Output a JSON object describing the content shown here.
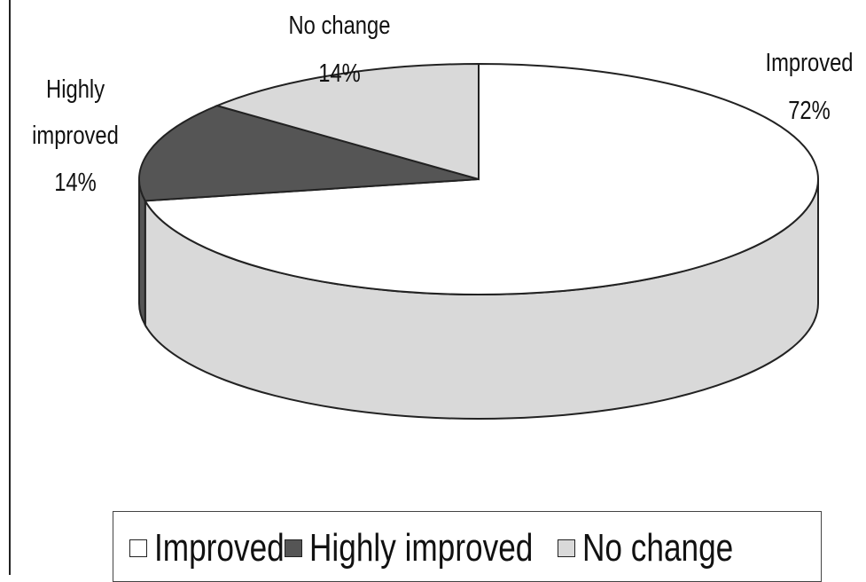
{
  "chart_data": {
    "type": "pie",
    "style": "3d",
    "title": "",
    "categories": [
      "Improved",
      "Highly improved",
      "No change"
    ],
    "values": [
      72,
      14,
      14
    ],
    "unit": "%",
    "data_labels": [
      {
        "category": "Improved",
        "value_text": "72%"
      },
      {
        "category": "Highly improved",
        "value_text": "14%"
      },
      {
        "category": "No change",
        "value_text": "14%"
      }
    ],
    "colors": {
      "Improved": "#ffffff",
      "Highly improved": "#555555",
      "No change": "#d9d9d9"
    },
    "legend": {
      "position": "bottom",
      "items": [
        "Improved",
        "Highly improved",
        "No change"
      ]
    },
    "grid": false
  },
  "labels": {
    "improved_name": "Improved",
    "improved_value": "72%",
    "highly_name_line1": "Highly",
    "highly_name_line2": "improved",
    "highly_value": "14%",
    "nochange_name": "No change",
    "nochange_value": "14%"
  }
}
